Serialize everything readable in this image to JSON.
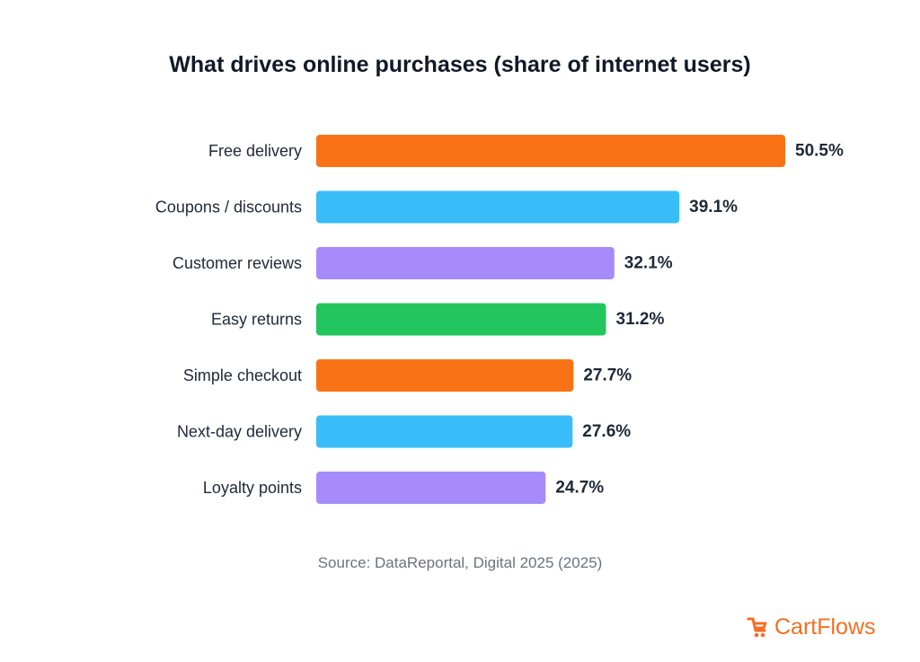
{
  "chart_data": {
    "type": "bar",
    "orientation": "horizontal",
    "title": "What drives online purchases (share of internet users)",
    "categories": [
      "Free delivery",
      "Coupons / discounts",
      "Customer reviews",
      "Easy returns",
      "Simple checkout",
      "Next-day delivery",
      "Loyalty points"
    ],
    "values": [
      50.5,
      39.1,
      32.1,
      31.2,
      27.7,
      27.6,
      24.7
    ],
    "value_labels": [
      "50.5%",
      "39.1%",
      "32.1%",
      "31.2%",
      "27.7%",
      "27.6%",
      "24.7%"
    ],
    "colors": [
      "#f97316",
      "#38bdf8",
      "#a78bfa",
      "#22c55e",
      "#f97316",
      "#38bdf8",
      "#a78bfa"
    ],
    "xlim": [
      0,
      50.5
    ],
    "grid": false,
    "legend": "none"
  },
  "footer": {
    "source": "Source: DataReportal, Digital 2025 (2025)",
    "brand": "CartFlows",
    "brand_color": "#f26f24"
  }
}
